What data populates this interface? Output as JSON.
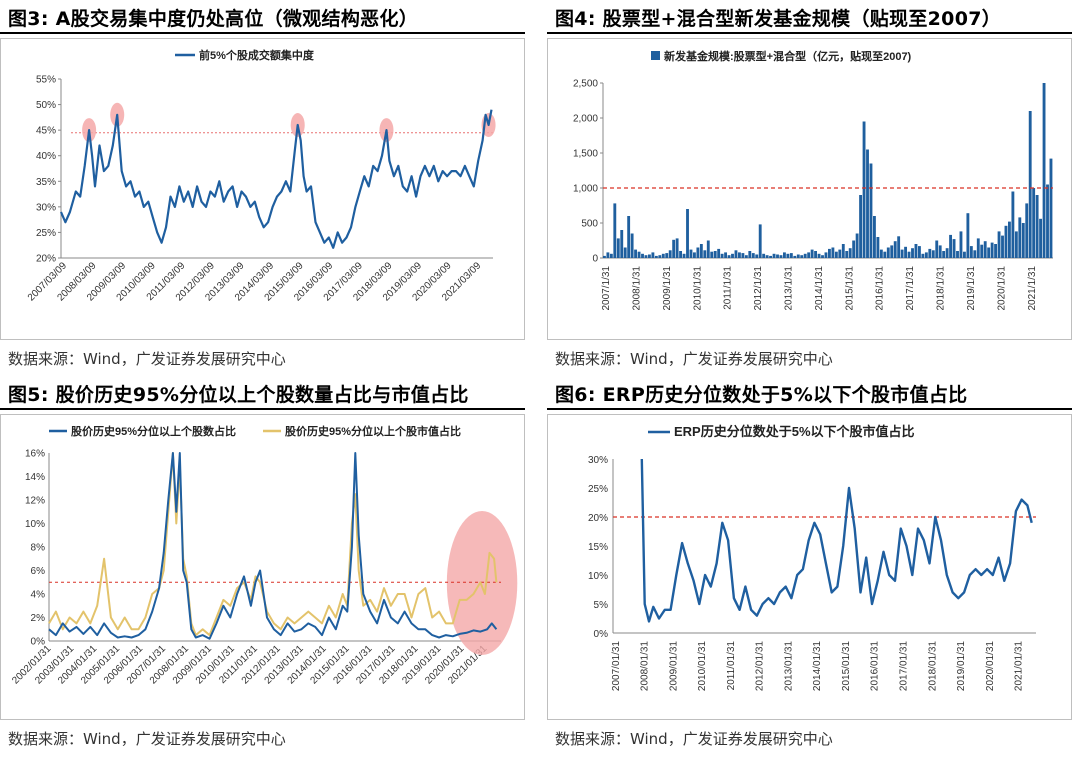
{
  "panels": {
    "fig3": {
      "title": "图3:  A股交易集中度仍处高位（微观结构恶化）",
      "source": "数据来源：Wind，广发证券发展研究中心"
    },
    "fig4": {
      "title": "图4:  股票型+混合型新发基金规模（贴现至2007）",
      "source": "数据来源：Wind，广发证券发展研究中心"
    },
    "fig5": {
      "title": "图5:  股价历史95%分位以上个股数量占比与市值占比",
      "source": "数据来源：Wind，广发证券发展研究中心"
    },
    "fig6": {
      "title": "图6:  ERP历史分位数处于5%以下个股市值占比",
      "source": "数据来源：Wind，广发证券发展研究中心"
    }
  },
  "colors": {
    "navy": "#1f5fa0",
    "gold": "#e3c36b",
    "red_dashed": "#d93025",
    "pink_marker": "#f4a8a8",
    "bar": "#1f5f9e"
  },
  "chart_data": [
    {
      "id": "fig3",
      "type": "line",
      "legend": [
        "前5%个股成交额集中度"
      ],
      "ylim": [
        0.2,
        0.55
      ],
      "yticks": [
        "20%",
        "25%",
        "30%",
        "35%",
        "40%",
        "45%",
        "50%",
        "55%"
      ],
      "xticks": [
        "2007/03/09",
        "2008/03/09",
        "2009/03/09",
        "2010/03/09",
        "2011/03/09",
        "2012/03/09",
        "2013/03/09",
        "2014/03/09",
        "2015/03/09",
        "2016/03/09",
        "2017/03/09",
        "2018/03/09",
        "2019/03/09",
        "2020/03/09",
        "2021/03/09"
      ],
      "reference_line": 0.445,
      "highlight_peaks_x": [
        2008.0,
        2008.9,
        2015.0,
        2018.0,
        2021.4
      ],
      "series": [
        {
          "name": "前5%个股成交额集中度",
          "x": [
            2007.0,
            2007.15,
            2007.3,
            2007.5,
            2007.65,
            2007.8,
            2007.95,
            2008.05,
            2008.15,
            2008.3,
            2008.45,
            2008.6,
            2008.75,
            2008.9,
            2009.05,
            2009.2,
            2009.35,
            2009.5,
            2009.65,
            2009.8,
            2009.95,
            2010.1,
            2010.25,
            2010.4,
            2010.55,
            2010.7,
            2010.85,
            2011.0,
            2011.15,
            2011.3,
            2011.45,
            2011.6,
            2011.75,
            2011.9,
            2012.05,
            2012.2,
            2012.35,
            2012.5,
            2012.65,
            2012.8,
            2012.95,
            2013.1,
            2013.25,
            2013.4,
            2013.55,
            2013.7,
            2013.85,
            2014.0,
            2014.15,
            2014.3,
            2014.45,
            2014.6,
            2014.75,
            2014.9,
            2015.0,
            2015.1,
            2015.2,
            2015.3,
            2015.45,
            2015.6,
            2015.75,
            2015.9,
            2016.05,
            2016.2,
            2016.35,
            2016.5,
            2016.65,
            2016.8,
            2016.95,
            2017.1,
            2017.25,
            2017.4,
            2017.55,
            2017.7,
            2017.85,
            2018.0,
            2018.1,
            2018.25,
            2018.4,
            2018.55,
            2018.7,
            2018.85,
            2019.0,
            2019.15,
            2019.3,
            2019.45,
            2019.6,
            2019.75,
            2019.9,
            2020.05,
            2020.2,
            2020.35,
            2020.5,
            2020.65,
            2020.8,
            2020.95,
            2021.1,
            2021.25,
            2021.35,
            2021.45,
            2021.55
          ],
          "y": [
            0.29,
            0.27,
            0.29,
            0.33,
            0.32,
            0.38,
            0.45,
            0.4,
            0.34,
            0.42,
            0.37,
            0.38,
            0.42,
            0.48,
            0.37,
            0.34,
            0.35,
            0.32,
            0.33,
            0.3,
            0.31,
            0.28,
            0.25,
            0.23,
            0.26,
            0.32,
            0.3,
            0.34,
            0.31,
            0.33,
            0.3,
            0.34,
            0.31,
            0.3,
            0.33,
            0.32,
            0.35,
            0.31,
            0.33,
            0.34,
            0.3,
            0.33,
            0.32,
            0.3,
            0.31,
            0.28,
            0.26,
            0.27,
            0.3,
            0.32,
            0.33,
            0.35,
            0.33,
            0.41,
            0.46,
            0.43,
            0.36,
            0.33,
            0.34,
            0.27,
            0.25,
            0.23,
            0.24,
            0.22,
            0.25,
            0.23,
            0.24,
            0.26,
            0.3,
            0.33,
            0.36,
            0.34,
            0.38,
            0.37,
            0.4,
            0.45,
            0.39,
            0.36,
            0.38,
            0.34,
            0.33,
            0.36,
            0.32,
            0.36,
            0.38,
            0.36,
            0.38,
            0.35,
            0.37,
            0.36,
            0.37,
            0.37,
            0.36,
            0.38,
            0.36,
            0.34,
            0.39,
            0.43,
            0.48,
            0.46,
            0.49
          ]
        }
      ]
    },
    {
      "id": "fig4",
      "type": "bar",
      "legend": [
        "新发基金规模:股票型+混合型（亿元，贴现至2007)"
      ],
      "ylim": [
        0,
        2500
      ],
      "yticks": [
        "0",
        "500",
        "1,000",
        "1,500",
        "2,000",
        "2,500"
      ],
      "xticks": [
        "2007/1/31",
        "2008/1/31",
        "2009/1/31",
        "2010/1/31",
        "2011/1/31",
        "2012/1/31",
        "2013/1/31",
        "2014/1/31",
        "2015/1/31",
        "2016/1/31",
        "2017/1/31",
        "2018/1/31",
        "2019/1/31",
        "2020/1/31",
        "2021/1/31"
      ],
      "reference_line": 1000,
      "series": [
        {
          "name": "新发基金规模:股票型+混合型（亿元，贴现至2007)",
          "values": [
            30,
            80,
            60,
            780,
            280,
            400,
            150,
            600,
            350,
            120,
            90,
            60,
            40,
            50,
            80,
            30,
            40,
            60,
            70,
            110,
            260,
            280,
            100,
            60,
            700,
            120,
            80,
            150,
            200,
            110,
            250,
            90,
            100,
            130,
            60,
            80,
            40,
            60,
            110,
            80,
            70,
            40,
            100,
            70,
            50,
            480,
            60,
            40,
            30,
            60,
            50,
            40,
            80,
            60,
            70,
            30,
            50,
            40,
            60,
            80,
            120,
            100,
            60,
            40,
            80,
            130,
            150,
            90,
            120,
            200,
            100,
            140,
            250,
            350,
            900,
            1950,
            1550,
            1350,
            600,
            300,
            120,
            90,
            150,
            180,
            240,
            310,
            120,
            160,
            90,
            140,
            200,
            170,
            60,
            80,
            130,
            110,
            250,
            180,
            100,
            140,
            330,
            270,
            100,
            380,
            90,
            640,
            170,
            110,
            280,
            190,
            240,
            150,
            220,
            200,
            380,
            320,
            460,
            520,
            950,
            380,
            580,
            500,
            780,
            2100,
            1000,
            900,
            560,
            2500,
            1050,
            1420
          ]
        }
      ]
    },
    {
      "id": "fig5",
      "type": "line",
      "legend": [
        "股价历史95%分位以上个股数占比",
        "股价历史95%分位以上个股市值占比"
      ],
      "ylim": [
        0,
        16
      ],
      "yticks": [
        "0%",
        "2%",
        "4%",
        "6%",
        "8%",
        "10%",
        "12%",
        "14%",
        "16%"
      ],
      "xticks": [
        "2002/01/31",
        "2003/01/31",
        "2004/01/31",
        "2005/01/31",
        "2006/01/31",
        "2007/01/31",
        "2008/01/31",
        "2009/01/31",
        "2010/01/31",
        "2011/01/31",
        "2012/01/31",
        "2013/01/31",
        "2014/01/31",
        "2015/01/31",
        "2016/01/31",
        "2017/01/31",
        "2018/01/31",
        "2019/01/31",
        "2020/01/31",
        "2021/01/31"
      ],
      "reference_line": 5,
      "highlight_ellipse_x": [
        2019.6,
        2021.8
      ],
      "series": [
        {
          "name": "股价历史95%分位以上个股数占比",
          "x": [
            2002.0,
            2002.3,
            2002.6,
            2002.9,
            2003.2,
            2003.5,
            2003.8,
            2004.1,
            2004.4,
            2004.7,
            2005.0,
            2005.3,
            2005.6,
            2005.9,
            2006.2,
            2006.5,
            2006.8,
            2007.0,
            2007.2,
            2007.4,
            2007.55,
            2007.7,
            2007.85,
            2008.0,
            2008.2,
            2008.4,
            2008.7,
            2009.0,
            2009.3,
            2009.6,
            2009.9,
            2010.2,
            2010.5,
            2010.8,
            2011.0,
            2011.2,
            2011.5,
            2011.8,
            2012.1,
            2012.4,
            2012.7,
            2013.0,
            2013.3,
            2013.6,
            2013.9,
            2014.2,
            2014.5,
            2014.8,
            2015.0,
            2015.2,
            2015.35,
            2015.5,
            2015.7,
            2016.0,
            2016.3,
            2016.6,
            2016.9,
            2017.2,
            2017.5,
            2017.8,
            2018.1,
            2018.4,
            2018.7,
            2019.0,
            2019.3,
            2019.6,
            2019.9,
            2020.2,
            2020.5,
            2020.8,
            2021.1,
            2021.3,
            2021.5
          ],
          "y": [
            1.0,
            0.5,
            1.5,
            0.8,
            1.2,
            0.6,
            1.2,
            0.5,
            1.5,
            0.7,
            0.3,
            0.4,
            0.3,
            0.5,
            1.0,
            2.5,
            4.5,
            7.5,
            12.0,
            16.0,
            11.0,
            16.0,
            6.0,
            5.0,
            1.0,
            0.3,
            0.5,
            0.2,
            1.5,
            3.0,
            2.0,
            4.0,
            5.5,
            3.0,
            5.0,
            6.0,
            2.0,
            1.0,
            0.5,
            1.5,
            0.8,
            1.0,
            1.5,
            1.2,
            0.5,
            2.0,
            1.0,
            3.0,
            2.5,
            8.0,
            16.0,
            9.0,
            4.0,
            2.5,
            1.5,
            3.5,
            2.0,
            1.5,
            2.5,
            1.5,
            1.0,
            1.0,
            0.5,
            0.3,
            0.5,
            0.4,
            0.6,
            0.7,
            0.9,
            0.8,
            1.0,
            1.5,
            1.0
          ]
        },
        {
          "name": "股价历史95%分位以上个股市值占比",
          "x": [
            2002.0,
            2002.3,
            2002.6,
            2002.9,
            2003.2,
            2003.5,
            2003.8,
            2004.1,
            2004.4,
            2004.7,
            2005.0,
            2005.3,
            2005.6,
            2005.9,
            2006.2,
            2006.5,
            2006.8,
            2007.0,
            2007.2,
            2007.4,
            2007.55,
            2007.7,
            2007.85,
            2008.0,
            2008.2,
            2008.4,
            2008.7,
            2009.0,
            2009.3,
            2009.6,
            2009.9,
            2010.2,
            2010.5,
            2010.8,
            2011.0,
            2011.2,
            2011.5,
            2011.8,
            2012.1,
            2012.4,
            2012.7,
            2013.0,
            2013.3,
            2013.6,
            2013.9,
            2014.2,
            2014.5,
            2014.8,
            2015.0,
            2015.2,
            2015.35,
            2015.5,
            2015.7,
            2016.0,
            2016.3,
            2016.6,
            2016.9,
            2017.2,
            2017.5,
            2017.8,
            2018.1,
            2018.4,
            2018.7,
            2019.0,
            2019.3,
            2019.6,
            2019.9,
            2020.2,
            2020.5,
            2020.8,
            2021.0,
            2021.2,
            2021.4,
            2021.5
          ],
          "y": [
            1.5,
            2.5,
            1.0,
            2.0,
            1.5,
            2.5,
            1.5,
            3.0,
            7.0,
            2.0,
            1.0,
            2.0,
            1.0,
            1.0,
            2.0,
            4.0,
            4.5,
            6.0,
            11.0,
            16.0,
            10.0,
            15.0,
            7.0,
            5.5,
            1.5,
            0.5,
            1.0,
            0.5,
            2.0,
            3.5,
            3.0,
            4.5,
            5.0,
            3.5,
            5.5,
            5.0,
            2.5,
            1.5,
            1.0,
            2.0,
            1.5,
            2.0,
            2.5,
            2.0,
            1.5,
            3.0,
            2.0,
            4.0,
            3.0,
            10.0,
            12.5,
            6.0,
            3.0,
            3.5,
            2.5,
            4.5,
            3.0,
            4.0,
            4.0,
            2.0,
            4.0,
            4.5,
            2.0,
            2.5,
            1.5,
            1.5,
            3.5,
            3.5,
            4.0,
            5.0,
            4.0,
            7.5,
            7.0,
            5.0
          ]
        }
      ]
    },
    {
      "id": "fig6",
      "type": "line",
      "legend": [
        "ERP历史分位数处于5%以下个股市值占比"
      ],
      "ylim": [
        0,
        0.3
      ],
      "yticks": [
        "0%",
        "5%",
        "10%",
        "15%",
        "20%",
        "25%",
        "30%"
      ],
      "xticks": [
        "2007/01/31",
        "2008/01/31",
        "2009/01/31",
        "2010/01/31",
        "2011/01/31",
        "2012/01/31",
        "2013/01/31",
        "2014/01/31",
        "2015/01/31",
        "2016/01/31",
        "2017/01/31",
        "2018/01/31",
        "2019/01/31",
        "2020/01/31",
        "2021/01/31"
      ],
      "reference_line": 0.2,
      "series": [
        {
          "name": "ERP历史分位数处于5%以下个股市值占比",
          "x": [
            2008.0,
            2008.1,
            2008.25,
            2008.4,
            2008.6,
            2008.8,
            2009.0,
            2009.2,
            2009.4,
            2009.6,
            2009.8,
            2010.0,
            2010.2,
            2010.4,
            2010.6,
            2010.8,
            2011.0,
            2011.2,
            2011.4,
            2011.6,
            2011.8,
            2012.0,
            2012.2,
            2012.4,
            2012.6,
            2012.8,
            2013.0,
            2013.2,
            2013.4,
            2013.6,
            2013.8,
            2014.0,
            2014.2,
            2014.4,
            2014.6,
            2014.8,
            2015.0,
            2015.2,
            2015.4,
            2015.6,
            2015.8,
            2016.0,
            2016.2,
            2016.4,
            2016.6,
            2016.8,
            2017.0,
            2017.2,
            2017.4,
            2017.6,
            2017.8,
            2018.0,
            2018.2,
            2018.4,
            2018.6,
            2018.8,
            2019.0,
            2019.2,
            2019.4,
            2019.6,
            2019.8,
            2020.0,
            2020.2,
            2020.4,
            2020.6,
            2020.8,
            2021.0,
            2021.2,
            2021.4,
            2021.55
          ],
          "y": [
            0.3,
            0.05,
            0.02,
            0.045,
            0.025,
            0.04,
            0.04,
            0.1,
            0.155,
            0.12,
            0.09,
            0.05,
            0.1,
            0.08,
            0.12,
            0.19,
            0.16,
            0.06,
            0.04,
            0.08,
            0.04,
            0.03,
            0.05,
            0.06,
            0.05,
            0.07,
            0.08,
            0.06,
            0.1,
            0.11,
            0.16,
            0.19,
            0.17,
            0.12,
            0.07,
            0.08,
            0.15,
            0.25,
            0.18,
            0.07,
            0.13,
            0.05,
            0.09,
            0.14,
            0.1,
            0.09,
            0.18,
            0.15,
            0.1,
            0.18,
            0.16,
            0.12,
            0.2,
            0.16,
            0.1,
            0.07,
            0.06,
            0.07,
            0.1,
            0.11,
            0.1,
            0.11,
            0.1,
            0.13,
            0.09,
            0.12,
            0.21,
            0.23,
            0.22,
            0.19
          ]
        }
      ]
    }
  ]
}
